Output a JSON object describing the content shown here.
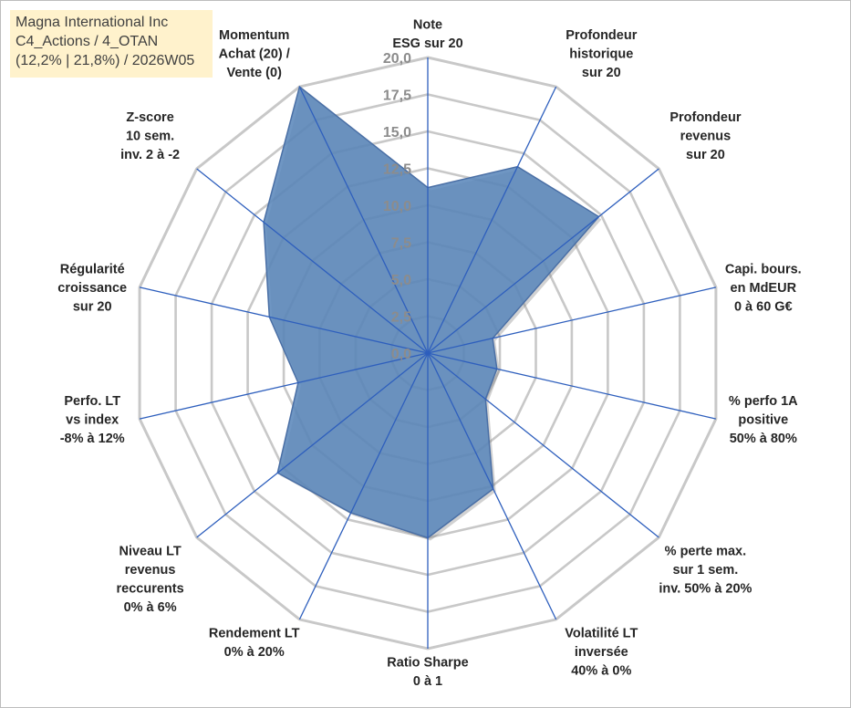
{
  "title_box": {
    "line1": "Magna International Inc",
    "line2": "C4_Actions / 4_OTAN",
    "line3": "(12,2% | 21,8%) / 2026W05"
  },
  "colors": {
    "fill": "#5b87bb",
    "outline": "#4a6fa5",
    "spoke": "#2e5fbd",
    "grid": "#c8c8c8",
    "title_bg": "#fff2cc"
  },
  "chart_data": {
    "type": "radar",
    "rmin": 0,
    "rmax": 20,
    "tick_step": 2.5,
    "tick_labels": [
      "0,0",
      "2,5",
      "5,0",
      "7,5",
      "10,0",
      "12,5",
      "15,0",
      "17,5",
      "20,0"
    ],
    "axes": [
      {
        "label": [
          "Note",
          "ESG sur 20"
        ],
        "value": 11.2
      },
      {
        "label": [
          "Profondeur",
          "historique",
          "sur 20"
        ],
        "value": 14.0
      },
      {
        "label": [
          "Profondeur",
          "revenus",
          "sur 20"
        ],
        "value": 14.8
      },
      {
        "label": [
          "Capi. bours.",
          "en MdEUR",
          "0 à 60 G€"
        ],
        "value": 4.5
      },
      {
        "label": [
          "% perfo 1A",
          "positive",
          "50% à 80%"
        ],
        "value": 4.8
      },
      {
        "label": [
          "% perte max.",
          "sur 1 sem.",
          "inv. 50% à 20%"
        ],
        "value": 5.0
      },
      {
        "label": [
          "Volatilité LT",
          "inversée",
          "40% à 0%"
        ],
        "value": 10.2
      },
      {
        "label": [
          "Ratio Sharpe",
          "0 à 1"
        ],
        "value": 12.5
      },
      {
        "label": [
          "Rendement LT",
          "0% à 20%"
        ],
        "value": 12.0
      },
      {
        "label": [
          "Niveau LT",
          "revenus",
          "reccurents",
          "0% à 6%"
        ],
        "value": 13.0
      },
      {
        "label": [
          "Perfo. LT",
          "vs index",
          "-8% à 12%"
        ],
        "value": 9.0
      },
      {
        "label": [
          "Régularité",
          "croissance",
          "sur 20"
        ],
        "value": 11.0
      },
      {
        "label": [
          "Z-score",
          "10 sem.",
          "inv. 2 à -2"
        ],
        "value": 14.2
      },
      {
        "label": [
          "Momentum",
          "Achat (20) /",
          "Vente (0)"
        ],
        "value": 20.0
      }
    ]
  }
}
